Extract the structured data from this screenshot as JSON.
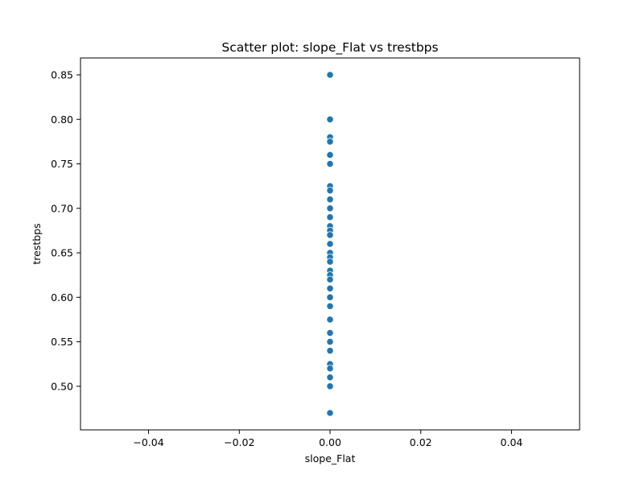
{
  "chart_data": {
    "type": "scatter",
    "title": "Scatter plot: slope_Flat vs trestbps",
    "xlabel": "slope_Flat",
    "ylabel": "trestbps",
    "xlim": [
      -0.055,
      0.055
    ],
    "ylim": [
      0.451,
      0.869
    ],
    "x_ticks": [
      -0.04,
      -0.02,
      0.0,
      0.02,
      0.04
    ],
    "x_tick_labels": [
      "−0.04",
      "−0.02",
      "0.00",
      "0.02",
      "0.04"
    ],
    "y_ticks": [
      0.5,
      0.55,
      0.6,
      0.65,
      0.7,
      0.75,
      0.8,
      0.85
    ],
    "y_tick_labels": [
      "0.50",
      "0.55",
      "0.60",
      "0.65",
      "0.70",
      "0.75",
      "0.80",
      "0.85"
    ],
    "grid": false,
    "marker_color": "#1f77b4",
    "points": [
      {
        "x": 0,
        "y": 0.85
      },
      {
        "x": 0,
        "y": 0.8
      },
      {
        "x": 0,
        "y": 0.78
      },
      {
        "x": 0,
        "y": 0.775
      },
      {
        "x": 0,
        "y": 0.76
      },
      {
        "x": 0,
        "y": 0.75
      },
      {
        "x": 0,
        "y": 0.725
      },
      {
        "x": 0,
        "y": 0.72
      },
      {
        "x": 0,
        "y": 0.71
      },
      {
        "x": 0,
        "y": 0.7
      },
      {
        "x": 0,
        "y": 0.69
      },
      {
        "x": 0,
        "y": 0.68
      },
      {
        "x": 0,
        "y": 0.675
      },
      {
        "x": 0,
        "y": 0.67
      },
      {
        "x": 0,
        "y": 0.66
      },
      {
        "x": 0,
        "y": 0.65
      },
      {
        "x": 0,
        "y": 0.645
      },
      {
        "x": 0,
        "y": 0.64
      },
      {
        "x": 0,
        "y": 0.63
      },
      {
        "x": 0,
        "y": 0.625
      },
      {
        "x": 0,
        "y": 0.62
      },
      {
        "x": 0,
        "y": 0.61
      },
      {
        "x": 0,
        "y": 0.6
      },
      {
        "x": 0,
        "y": 0.59
      },
      {
        "x": 0,
        "y": 0.575
      },
      {
        "x": 0,
        "y": 0.56
      },
      {
        "x": 0,
        "y": 0.55
      },
      {
        "x": 0,
        "y": 0.54
      },
      {
        "x": 0,
        "y": 0.525
      },
      {
        "x": 0,
        "y": 0.52
      },
      {
        "x": 0,
        "y": 0.51
      },
      {
        "x": 0,
        "y": 0.5
      },
      {
        "x": 0,
        "y": 0.47
      }
    ]
  }
}
